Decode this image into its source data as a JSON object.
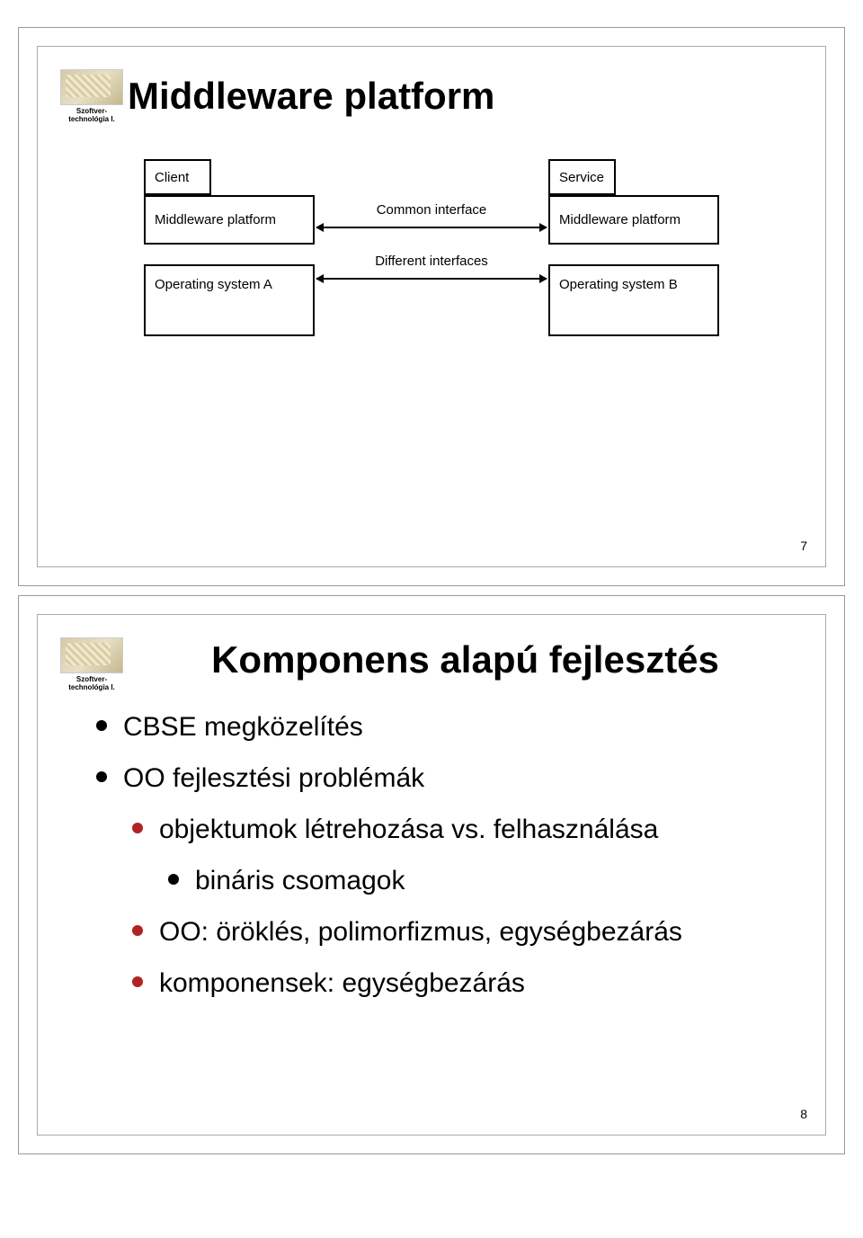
{
  "slide1": {
    "logo_caption": "Szoftver-technológia I.",
    "title": "Middleware platform",
    "page_number": "7",
    "diagram": {
      "left_stack": {
        "top_box": "Client",
        "mid_box": "Middleware platform",
        "os_box": "Operating system A"
      },
      "right_stack": {
        "top_box": "Service",
        "mid_box": "Middleware platform",
        "os_box": "Operating system B"
      },
      "annotation_common": "Common interface",
      "annotation_different": "Different interfaces"
    }
  },
  "slide2": {
    "logo_caption": "Szoftver-technológia I.",
    "title": "Komponens alapú fejlesztés",
    "page_number": "8",
    "bullets": [
      {
        "level": 1,
        "text": "CBSE megközelítés"
      },
      {
        "level": 1,
        "text": "OO fejlesztési problémák"
      },
      {
        "level": 2,
        "text": "objektumok létrehozása vs. felhasználása"
      },
      {
        "level": 3,
        "text": "bináris csomagok"
      },
      {
        "level": 2,
        "text": "OO: öröklés, polimorfizmus, egységbezárás"
      },
      {
        "level": 2,
        "text": "komponensek: egységbezárás"
      }
    ]
  },
  "colors": {
    "bullet_black": "#000000",
    "bullet_red": "#b22222",
    "border": "#999999",
    "text": "#000000"
  }
}
